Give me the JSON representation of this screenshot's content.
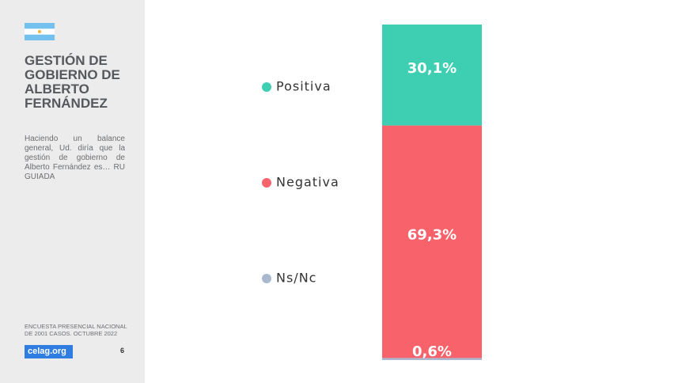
{
  "sidebar": {
    "title": "GESTIÓN DE GOBIERNO DE ALBERTO FERNÁNDEZ",
    "description": "Haciendo un balance general, Ud. diría que la gestión de gobierno de Alberto Fernández es… RU GUIADA",
    "footnote": "ENCUESTA PRESENCIAL NACIONAL DE 2001 CASOS. OCTUBRE 2022",
    "logo": "celag.org",
    "page": 6
  },
  "chart_data": {
    "type": "stacked-bar",
    "series": [
      {
        "name": "Positiva",
        "color": "#3ecfb2",
        "values": [
          30.1
        ],
        "value_labels": [
          "30,1%"
        ]
      },
      {
        "name": "Negativa",
        "color": "#f7626b",
        "values": [
          69.3
        ],
        "value_labels": [
          "69,3%"
        ]
      },
      {
        "name": "Ns/Nc",
        "color": "#a9b8cc",
        "values": [
          0.6
        ],
        "value_labels": [
          "0,6%"
        ]
      }
    ]
  }
}
